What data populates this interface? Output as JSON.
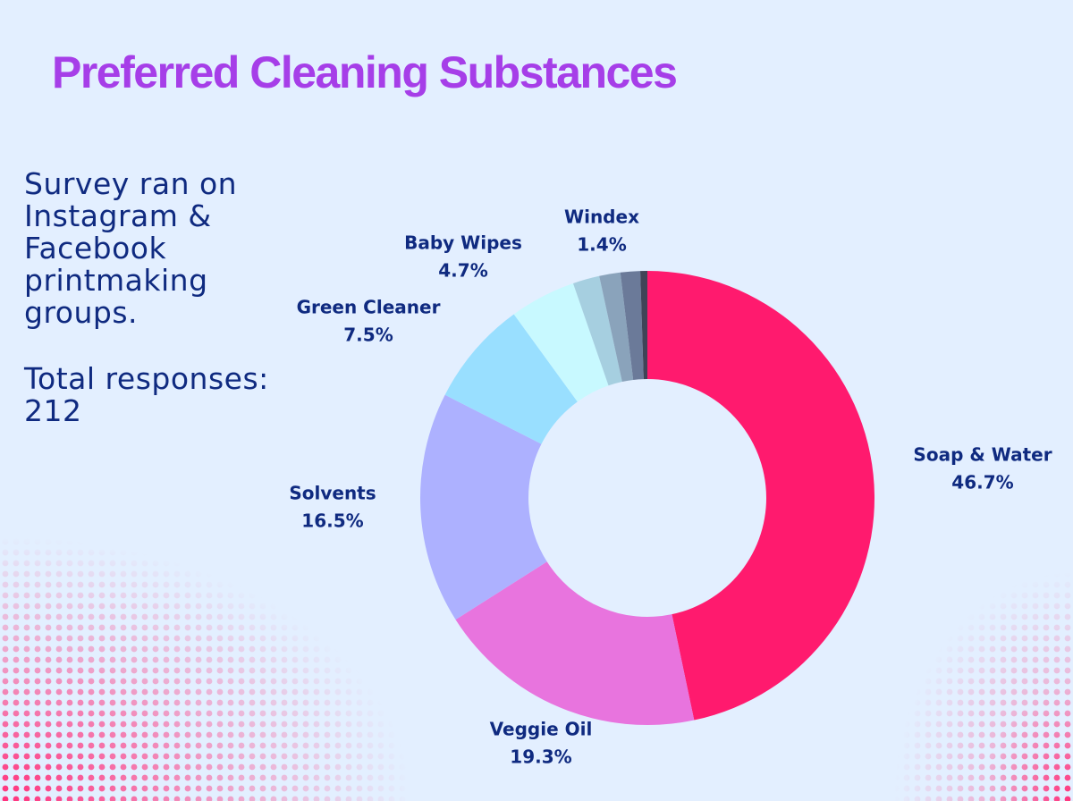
{
  "chart_data": {
    "type": "donut",
    "title": "Preferred Cleaning Substances",
    "notes": [
      "Survey ran on Instagram & Facebook printmaking groups.",
      "Total responses: 212"
    ],
    "categories": [
      "Soap & Water",
      "Veggie Oil",
      "Solvents",
      "Green Cleaner",
      "Baby Wipes",
      null,
      null,
      "Windex",
      null
    ],
    "values": [
      46.7,
      19.3,
      16.5,
      7.5,
      4.7,
      1.9,
      1.5,
      1.4,
      0.5
    ],
    "value_labels": [
      "46.7%",
      "19.3%",
      "16.5%",
      "7.5%",
      "4.7%",
      null,
      null,
      "1.4%",
      null
    ],
    "colors": [
      "#ff1a6e",
      "#e874de",
      "#adb1ff",
      "#99dfff",
      "#c8f9ff",
      "#a6cfe0",
      "#8aa3bb",
      "#6b7a99",
      "#3f4457"
    ]
  }
}
